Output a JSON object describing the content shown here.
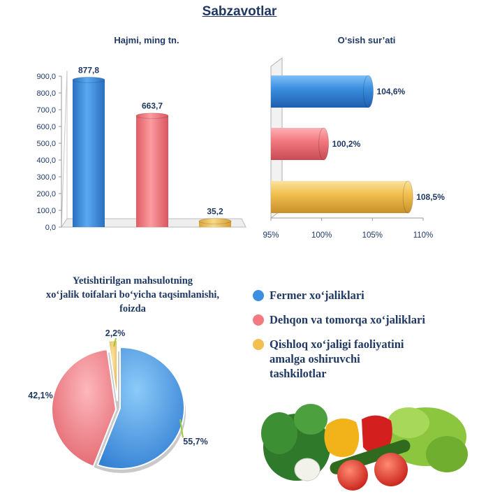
{
  "page_title": "Sabzavotlar",
  "colors": {
    "title": "#1f3864",
    "series": [
      "#3c8fe0",
      "#f27a80",
      "#f2c050"
    ]
  },
  "legend": [
    {
      "lines": [
        "Fermer xo‘jaliklari"
      ]
    },
    {
      "lines": [
        "Dehqon va tomorqa xo‘jaliklari"
      ]
    },
    {
      "lines": [
        "Qishloq xo‘jaligi faoliyatini",
        "amalga oshiruvchi",
        "tashkilotlar"
      ]
    }
  ],
  "pie_title_lines": [
    "Yetishtirilgan mahsulotning",
    "xo‘jalik toifalari bo‘yicha taqsimlanishi,",
    "foizda"
  ],
  "photo": {
    "icon": "vegetables-photo"
  },
  "chart_data": [
    {
      "type": "bar",
      "title": "Hajmi, ming tn.",
      "categories": [
        "Fermer xo‘jaliklari",
        "Dehqon va tomorqa xo‘jaliklari",
        "Qishloq xo‘jaligi faoliyatini amalga oshiruvchi tashkilotlar"
      ],
      "values": [
        877.8,
        663.7,
        35.2
      ],
      "value_labels": [
        "877,8",
        "663,7",
        "35,2"
      ],
      "ylim": [
        0,
        900
      ],
      "yticks": [
        "0,0",
        "100,0",
        "200,0",
        "300,0",
        "400,0",
        "500,0",
        "600,0",
        "700,0",
        "800,0",
        "900,0"
      ],
      "grid": false
    },
    {
      "type": "bar",
      "orientation": "horizontal",
      "title": "O‘sish sur’ati",
      "categories": [
        "Fermer xo‘jaliklari",
        "Dehqon va tomorqa xo‘jaliklari",
        "Qishloq xo‘jaligi faoliyatini amalga oshiruvchi tashkilotlar"
      ],
      "values": [
        104.6,
        100.2,
        108.5
      ],
      "value_labels": [
        "104,6%",
        "100,2%",
        "108,5%"
      ],
      "xlim": [
        95,
        110
      ],
      "xticks": [
        "95%",
        "100%",
        "105%",
        "110%"
      ],
      "grid": false
    },
    {
      "type": "pie",
      "categories": [
        "Fermer xo‘jaliklari",
        "Dehqon va tomorqa xo‘jaliklari",
        "Qishloq xo‘jaligi faoliyatini amalga oshiruvchi tashkilotlar"
      ],
      "values": [
        55.7,
        42.1,
        2.2
      ],
      "value_labels": [
        "55,7%",
        "42,1%",
        "2,2%"
      ]
    }
  ]
}
